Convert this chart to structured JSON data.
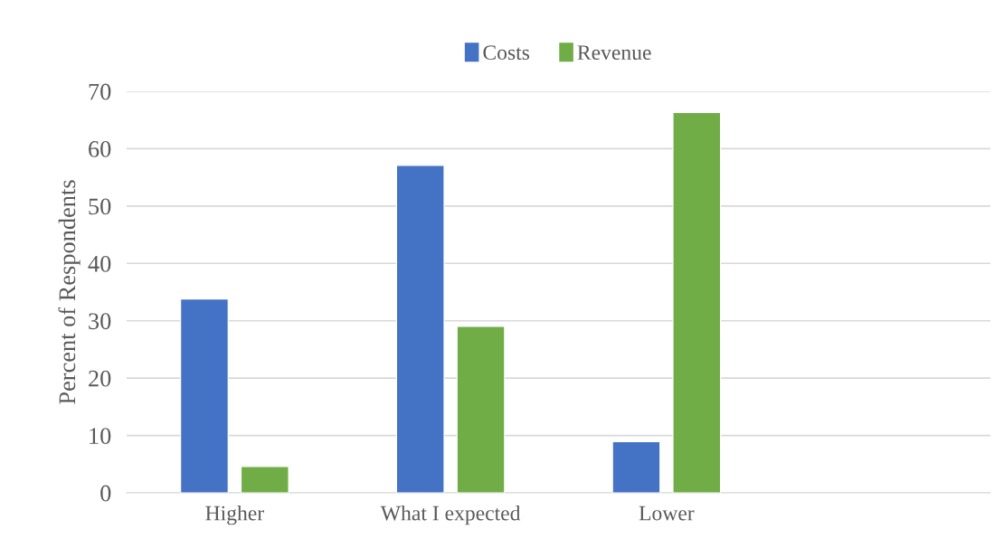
{
  "chart_data": {
    "type": "bar",
    "ylabel": "Percent of Respondents",
    "categories": [
      "Higher",
      "What I expected",
      "Lower",
      null
    ],
    "series": [
      {
        "name": "Costs",
        "color": "#4472c4",
        "values": [
          33.8,
          57.1,
          8.9,
          null
        ]
      },
      {
        "name": "Revenue",
        "color": "#70ad47",
        "values": [
          4.6,
          29.0,
          66.3,
          null
        ]
      }
    ],
    "ylim": [
      0,
      70
    ],
    "yticks": [
      0,
      10,
      20,
      30,
      40,
      50,
      60,
      70
    ],
    "grid": "y",
    "legend": "top"
  }
}
